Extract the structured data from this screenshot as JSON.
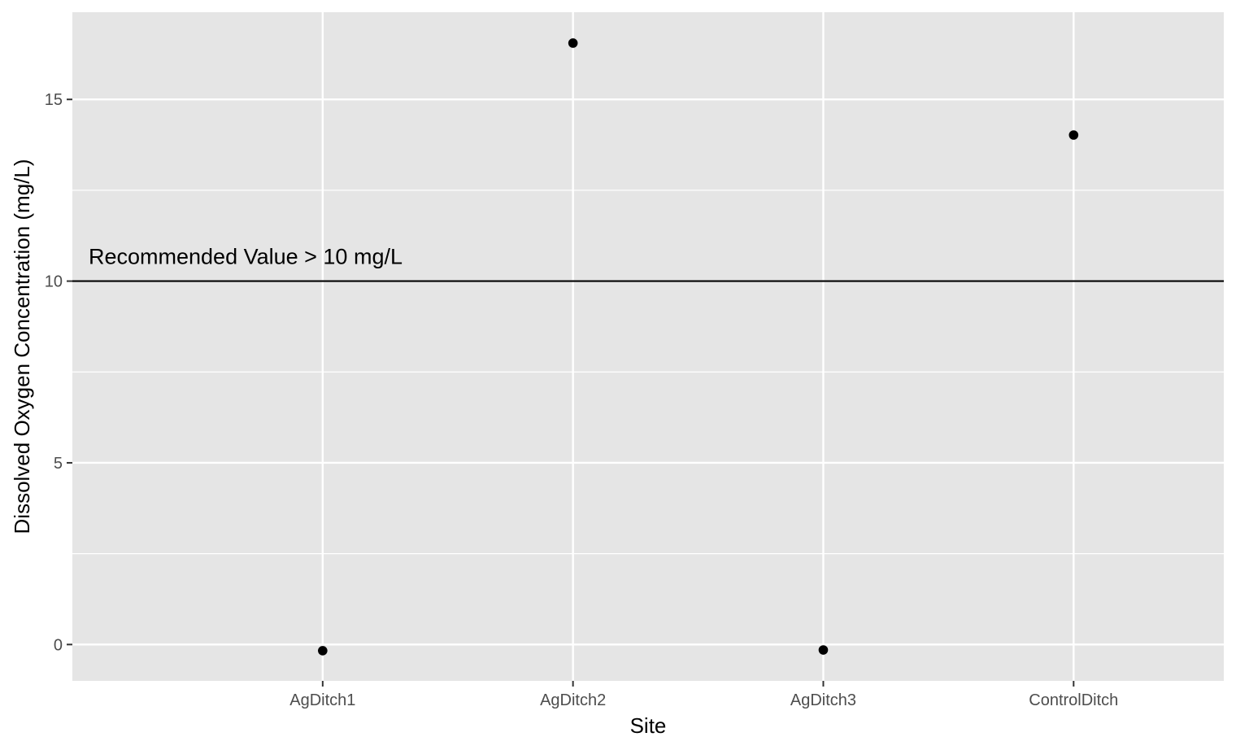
{
  "chart_data": {
    "type": "scatter",
    "title": "",
    "xlabel": "Site",
    "ylabel": "Dissolved Oxygen Concentration (mg/L)",
    "categories": [
      "AgDitch1",
      "AgDitch2",
      "AgDitch3",
      "ControlDitch"
    ],
    "series": [
      {
        "values": [
          -0.17,
          16.55,
          -0.15,
          14.02
        ]
      }
    ],
    "ylim": [
      -1,
      17.4
    ],
    "y_ticks": [
      0,
      5,
      10,
      15
    ],
    "grid": true,
    "reference_line": {
      "y": 10,
      "label": "Recommended Value > 10 mg/L"
    },
    "colors": {
      "panel": "#e5e5e5",
      "grid": "#ffffff",
      "point": "#000000",
      "line": "#000000"
    }
  }
}
